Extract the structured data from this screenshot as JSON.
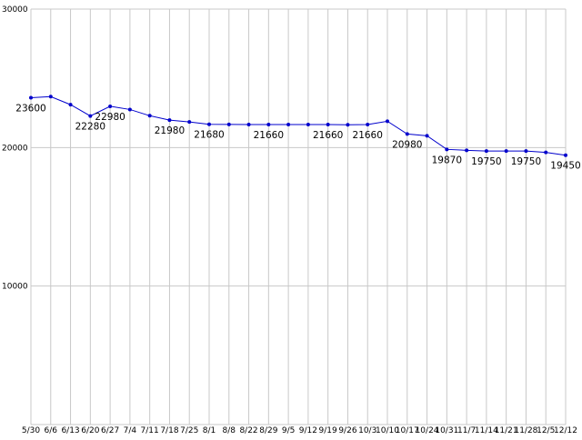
{
  "page": {
    "background": "#ffffff"
  },
  "chart_data": {
    "type": "line",
    "title": "",
    "xlabel": "",
    "ylabel": "",
    "categories": [
      "5/30",
      "6/6",
      "6/13",
      "6/20",
      "6/27",
      "7/4",
      "7/11",
      "7/18",
      "7/25",
      "8/1",
      "8/8",
      "8/22",
      "8/29",
      "9/5",
      "9/12",
      "9/19",
      "9/26",
      "10/3",
      "10/10",
      "10/17",
      "10/24",
      "10/31",
      "11/7",
      "11/14",
      "11/21",
      "11/28",
      "12/5",
      "12/12"
    ],
    "values": [
      23600,
      23680,
      23100,
      22280,
      22980,
      22750,
      22300,
      21980,
      21850,
      21680,
      21670,
      21660,
      21660,
      21660,
      21660,
      21660,
      21650,
      21660,
      21900,
      20980,
      20850,
      19870,
      19800,
      19750,
      19750,
      19750,
      19650,
      19450
    ],
    "point_labels": [
      "23600",
      "",
      "",
      "22280",
      "22980",
      "",
      "",
      "21980",
      "",
      "21680",
      "",
      "",
      "21660",
      "",
      "",
      "21660",
      "",
      "21660",
      "",
      "20980",
      "",
      "19870",
      "",
      "19750",
      "",
      "19750",
      "",
      "19450"
    ],
    "yticks": [
      30000,
      20000,
      10000
    ],
    "ytick_labels": [
      "30000",
      "20000",
      "10000"
    ],
    "ylim": [
      0,
      30000
    ],
    "grid": true,
    "legend": "none",
    "line_color": "#0000cc",
    "marker_color": "#0000cc",
    "grid_color": "#c8c8c8",
    "text_color": "#000000",
    "background": "#ffffff"
  }
}
